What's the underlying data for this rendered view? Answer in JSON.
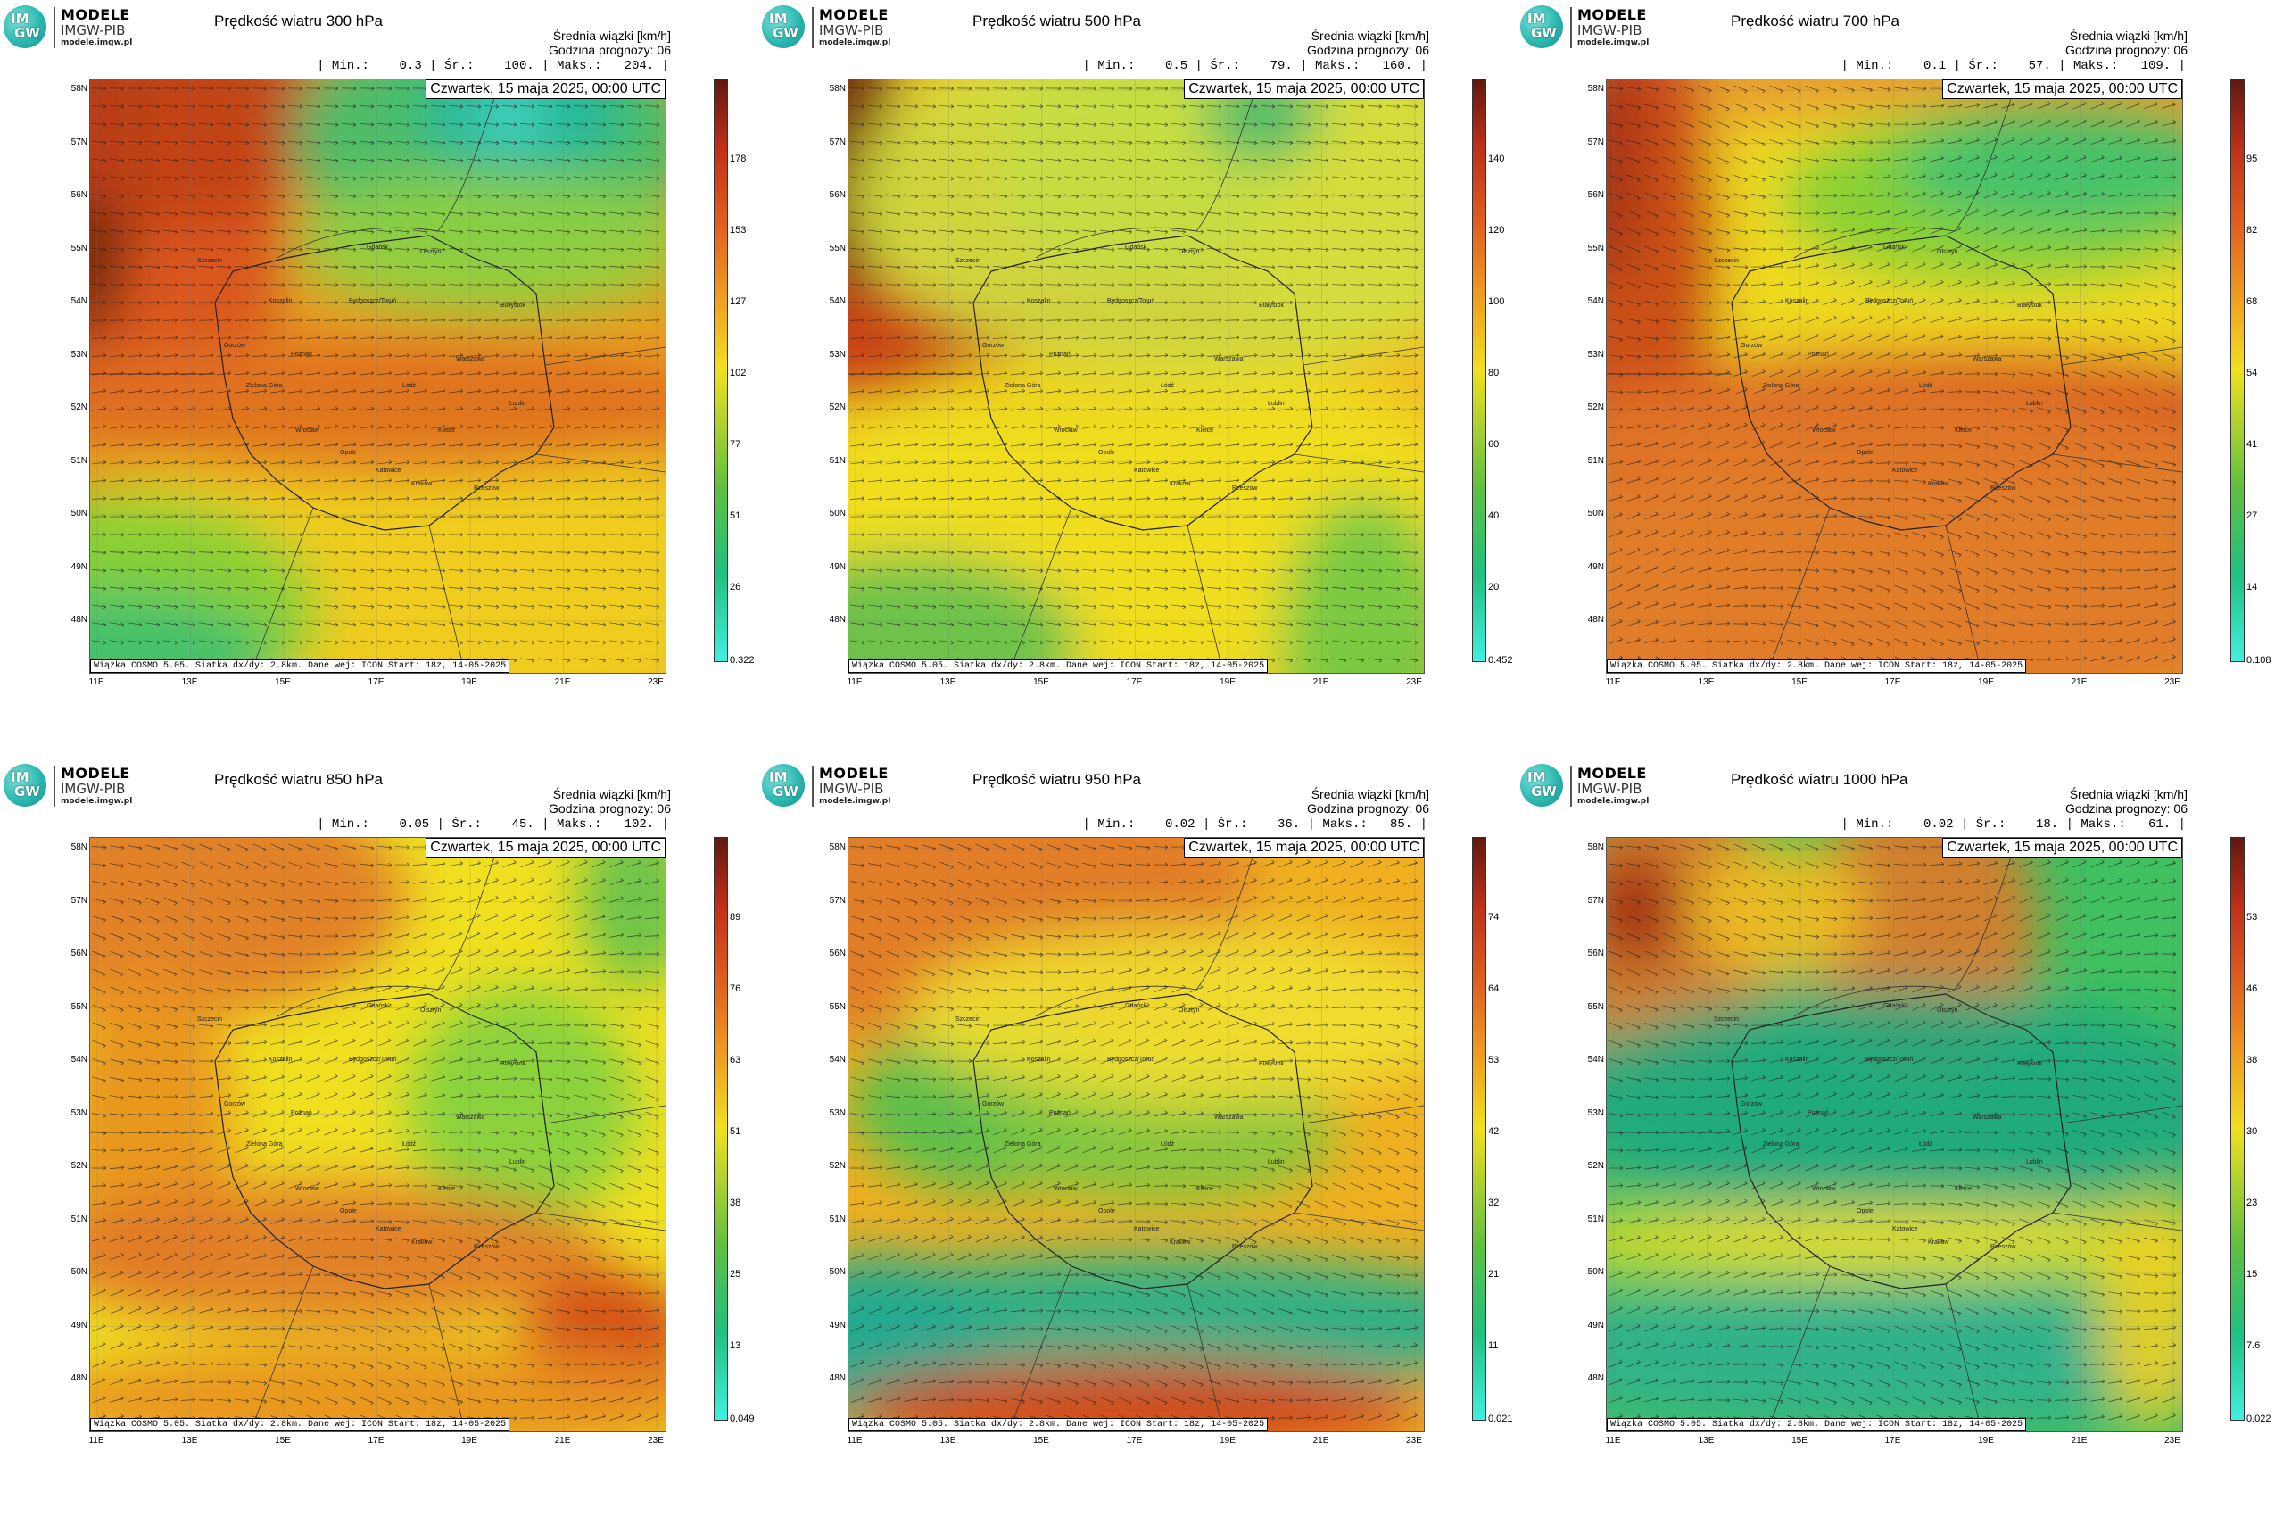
{
  "logo": {
    "im": "IM",
    "gw": "GW",
    "name": "MODELE",
    "org": "IMGW-PIB",
    "url": "modele.imgw.pl"
  },
  "common": {
    "info_line1": "Średnia wiązki [km/h]",
    "info_line2": "Godzina prognozy: 06",
    "date": "Czwartek, 15 maja 2025, 00:00 UTC",
    "footer": "Wiązka COSMO 5.05. Siatka dx/dy: 2.8km. Dane wej: ICON Start: 18z, 14-05-2025",
    "lat_labels": [
      "58N",
      "57N",
      "56N",
      "55N",
      "54N",
      "53N",
      "52N",
      "51N",
      "50N",
      "49N",
      "48N"
    ],
    "lon_labels": [
      "11E",
      "13E",
      "15E",
      "17E",
      "19E",
      "21E",
      "23E"
    ],
    "cities": [
      "Gdańsk",
      "Olsztyn",
      "Koszalin",
      "Bydgoszcz/Toruń",
      "Białystok",
      "Gorzów",
      "Poznań",
      "Warszawa",
      "Zielona Góra",
      "Łódź",
      "Lublin",
      "Wrocław",
      "Kielce",
      "Opole",
      "Katowice",
      "Kraków",
      "Rzeszów",
      "Szczecin"
    ]
  },
  "panels": [
    {
      "title": "Prędkość wiatru 300 hPa",
      "stats": "| Min.:    0.3 | Śr.:    100. | Maks.:   204. |",
      "cbar": [
        "178",
        "153",
        "127",
        "102",
        "77",
        "51",
        "26",
        "0.322"
      ]
    },
    {
      "title": "Prędkość wiatru 500 hPa",
      "stats": "| Min.:    0.5 | Śr.:    79. | Maks.:   160. |",
      "cbar": [
        "140",
        "120",
        "100",
        "80",
        "60",
        "40",
        "20",
        "0.452"
      ]
    },
    {
      "title": "Prędkość wiatru 700 hPa",
      "stats": "| Min.:    0.1 | Śr.:    57. | Maks.:   109. |",
      "cbar": [
        "95",
        "82",
        "68",
        "54",
        "41",
        "27",
        "14",
        "0.108"
      ]
    },
    {
      "title": "Prędkość wiatru 850 hPa",
      "stats": "| Min.:    0.05 | Śr.:    45. | Maks.:   102. |",
      "cbar": [
        "89",
        "76",
        "63",
        "51",
        "38",
        "25",
        "13",
        "0.049"
      ]
    },
    {
      "title": "Prędkość wiatru 950 hPa",
      "stats": "| Min.:    0.02 | Śr.:    36. | Maks.:   85. |",
      "cbar": [
        "74",
        "64",
        "53",
        "42",
        "32",
        "21",
        "11",
        "0.021"
      ]
    },
    {
      "title": "Prędkość wiatru 1000 hPa",
      "stats": "| Min.:    0.02 | Śr.:    18. | Maks.:   61. |",
      "cbar": [
        "53",
        "46",
        "38",
        "30",
        "23",
        "15",
        "7.6",
        "0.022"
      ]
    }
  ]
}
